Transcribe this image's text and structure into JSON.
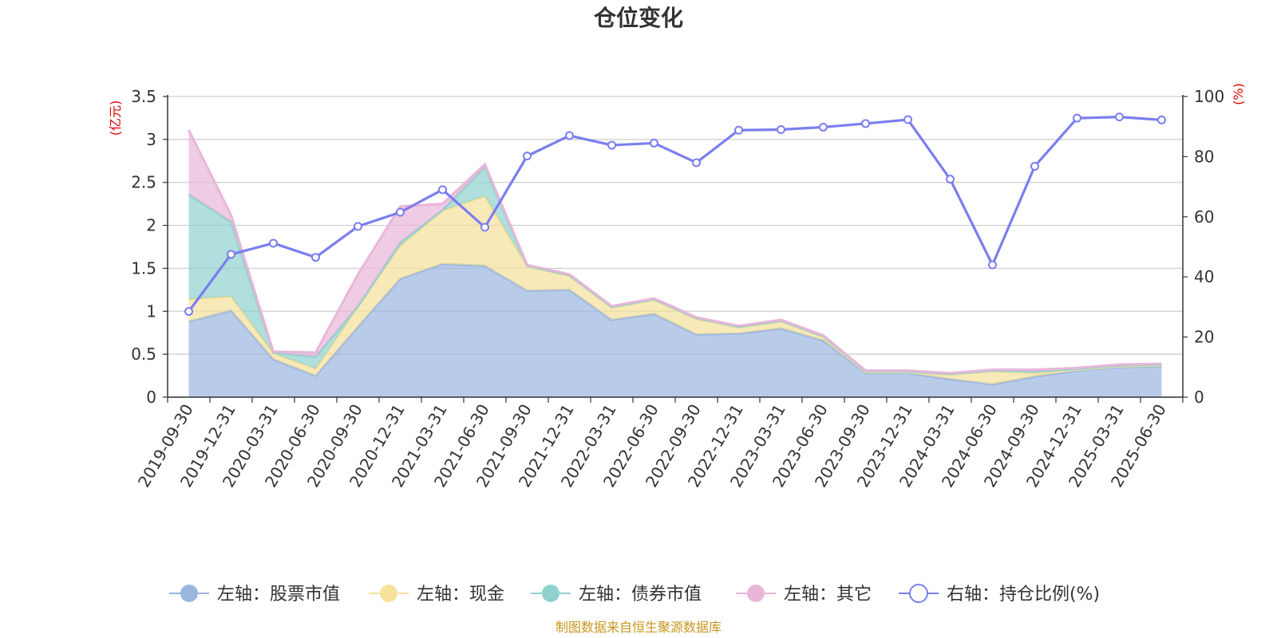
{
  "chart_data": {
    "type": "area",
    "title": "仓位变化",
    "y_left_unit": "(亿元)",
    "y_right_unit": "(%)",
    "ylim_left": [
      0,
      3.5
    ],
    "ylim_right": [
      0,
      100
    ],
    "y_left_ticks": [
      "0",
      "0.5",
      "1",
      "1.5",
      "2",
      "2.5",
      "3",
      "3.5"
    ],
    "y_right_ticks": [
      "0",
      "20",
      "40",
      "60",
      "80",
      "100"
    ],
    "categories": [
      "2019-09-30",
      "2019-12-31",
      "2020-03-31",
      "2020-06-30",
      "2020-09-30",
      "2020-12-31",
      "2021-03-31",
      "2021-06-30",
      "2021-09-30",
      "2021-12-31",
      "2022-03-31",
      "2022-06-30",
      "2022-09-30",
      "2022-12-31",
      "2023-03-31",
      "2023-06-30",
      "2023-09-30",
      "2023-12-31",
      "2024-03-31",
      "2024-06-30",
      "2024-09-30",
      "2024-12-31",
      "2025-03-31",
      "2025-06-30"
    ],
    "stacked": true,
    "series": [
      {
        "name": "左轴：股票市值",
        "axis": "left",
        "color": "#9ab5e0",
        "values": [
          0.88,
          1.01,
          0.44,
          0.25,
          0.82,
          1.38,
          1.55,
          1.53,
          1.24,
          1.25,
          0.9,
          0.97,
          0.73,
          0.74,
          0.8,
          0.66,
          0.28,
          0.28,
          0.21,
          0.15,
          0.24,
          0.31,
          0.35,
          0.36
        ]
      },
      {
        "name": "左轴：现金",
        "axis": "left",
        "color": "#f5e19a",
        "values": [
          0.26,
          0.16,
          0.07,
          0.08,
          0.23,
          0.38,
          0.62,
          0.81,
          0.28,
          0.16,
          0.14,
          0.16,
          0.18,
          0.07,
          0.08,
          0.04,
          0.01,
          0.01,
          0.05,
          0.15,
          0.04,
          0.01,
          0.01,
          0.01
        ]
      },
      {
        "name": "左轴：债券市值",
        "axis": "left",
        "color": "#8fd1cf",
        "values": [
          1.22,
          0.87,
          0.01,
          0.14,
          0.01,
          0.04,
          0.01,
          0.34,
          0.01,
          0.01,
          0.01,
          0.01,
          0.01,
          0.01,
          0.01,
          0.01,
          0.01,
          0.01,
          0.01,
          0.01,
          0.02,
          0.01,
          0.01,
          0.01
        ]
      },
      {
        "name": "左轴：其它",
        "axis": "left",
        "color": "#e8b6d9",
        "values": [
          0.75,
          0.08,
          0.01,
          0.05,
          0.37,
          0.42,
          0.07,
          0.03,
          0.01,
          0.01,
          0.01,
          0.01,
          0.01,
          0.01,
          0.01,
          0.01,
          0.01,
          0.01,
          0.01,
          0.01,
          0.02,
          0.01,
          0.01,
          0.01
        ]
      },
      {
        "name": "右轴：持仓比例(%)",
        "axis": "right",
        "type": "line",
        "color": "#7b7ef0",
        "values": [
          28.5,
          47.5,
          51.2,
          46.5,
          56.8,
          61.5,
          69.0,
          56.5,
          80.2,
          87.0,
          83.8,
          84.5,
          78.0,
          88.8,
          89.0,
          89.8,
          91.0,
          92.3,
          72.5,
          44.0,
          76.8,
          92.8,
          93.2,
          92.2
        ]
      }
    ],
    "legend_position": "bottom",
    "grid": true
  },
  "footer": {
    "source": "制图数据来自恒生聚源数据库"
  }
}
